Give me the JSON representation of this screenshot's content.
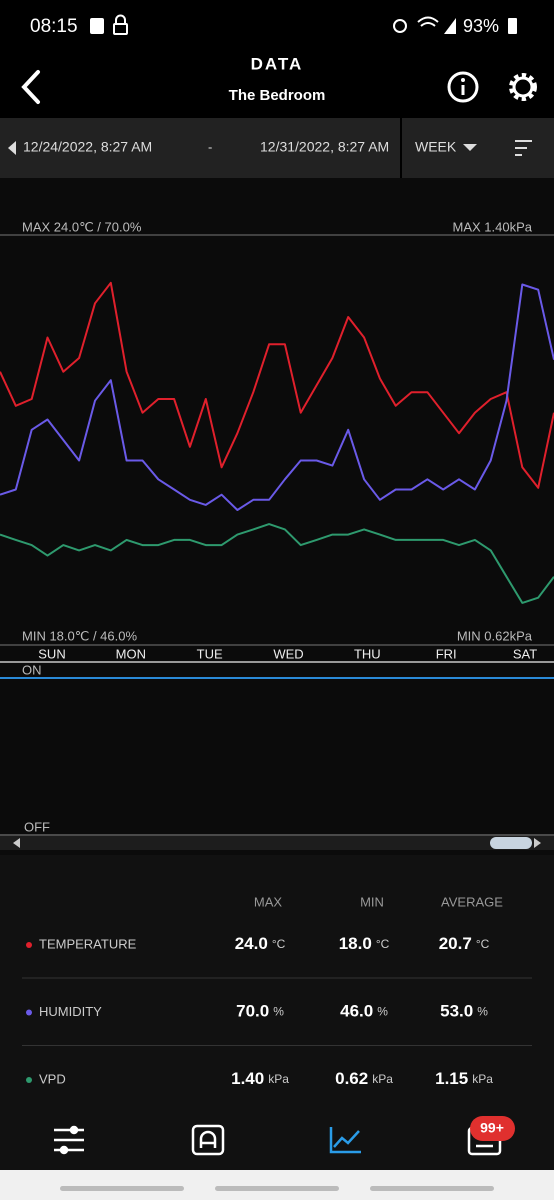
{
  "status_bar": {
    "time": "08:15",
    "battery": "93%"
  },
  "header": {
    "title": "DATA",
    "subtitle": "The Bedroom"
  },
  "date_range": {
    "start": "12/24/2022, 8:27 AM",
    "separator": "-",
    "end": "12/31/2022, 8:27 AM",
    "period": "WEEK"
  },
  "chart_data": {
    "type": "line",
    "max_label": "MAX 24.0℃ / 70.0%",
    "max_label_right": "MAX 1.40kPa",
    "min_label": "MIN 18.0℃ / 46.0%",
    "min_label_right": "MIN 0.62kPa",
    "x_labels": [
      "SUN",
      "MON",
      "TUE",
      "WED",
      "THU",
      "FRI",
      "SAT"
    ],
    "series": [
      {
        "name": "TEMPERATURE",
        "color": "#e0202c",
        "ylim": [
          18,
          24
        ],
        "values": [
          22.0,
          21.5,
          21.6,
          22.5,
          22.0,
          22.2,
          23.0,
          23.3,
          22.0,
          21.4,
          21.6,
          21.6,
          20.9,
          21.6,
          20.6,
          21.1,
          21.7,
          22.4,
          22.4,
          21.4,
          21.8,
          22.2,
          22.8,
          22.5,
          21.9,
          21.5,
          21.7,
          21.7,
          21.4,
          21.1,
          21.4,
          21.6,
          21.7,
          20.6,
          20.3,
          21.4
        ]
      },
      {
        "name": "HUMIDITY",
        "color": "#6a5ae8",
        "ylim": [
          46,
          70
        ],
        "values": [
          54.8,
          55.1,
          58.6,
          59.2,
          58.0,
          56.8,
          60.3,
          61.5,
          56.8,
          56.8,
          55.7,
          55.1,
          54.5,
          54.2,
          54.8,
          53.9,
          54.5,
          54.5,
          55.7,
          56.8,
          56.8,
          56.5,
          58.6,
          55.7,
          54.5,
          55.1,
          55.1,
          55.7,
          55.1,
          55.7,
          55.1,
          56.8,
          60.3,
          67.1,
          66.8,
          62.7
        ]
      },
      {
        "name": "VPD",
        "color": "#2e9a6e",
        "ylim": [
          0.62,
          1.4
        ],
        "values": [
          0.83,
          0.82,
          0.81,
          0.79,
          0.81,
          0.8,
          0.81,
          0.8,
          0.82,
          0.81,
          0.81,
          0.82,
          0.82,
          0.81,
          0.81,
          0.83,
          0.84,
          0.85,
          0.84,
          0.81,
          0.82,
          0.83,
          0.83,
          0.84,
          0.83,
          0.82,
          0.82,
          0.82,
          0.82,
          0.81,
          0.82,
          0.8,
          0.75,
          0.7,
          0.71,
          0.75
        ]
      }
    ]
  },
  "switch_chart": {
    "on_label": "ON",
    "off_label": "OFF"
  },
  "stats": {
    "headers": [
      "MAX",
      "MIN",
      "AVERAGE"
    ],
    "rows": [
      {
        "name": "TEMPERATURE",
        "color": "#e0202c",
        "values": [
          "24.0",
          "18.0",
          "20.7"
        ],
        "unit": "°C"
      },
      {
        "name": "HUMIDITY",
        "color": "#6a5ae8",
        "values": [
          "70.0",
          "46.0",
          "53.0"
        ],
        "unit": "%"
      },
      {
        "name": "VPD",
        "color": "#2e9a6e",
        "values": [
          "1.40",
          "0.62",
          "1.15"
        ],
        "unit": "kPa"
      }
    ]
  },
  "nav": {
    "badge": "99+"
  }
}
